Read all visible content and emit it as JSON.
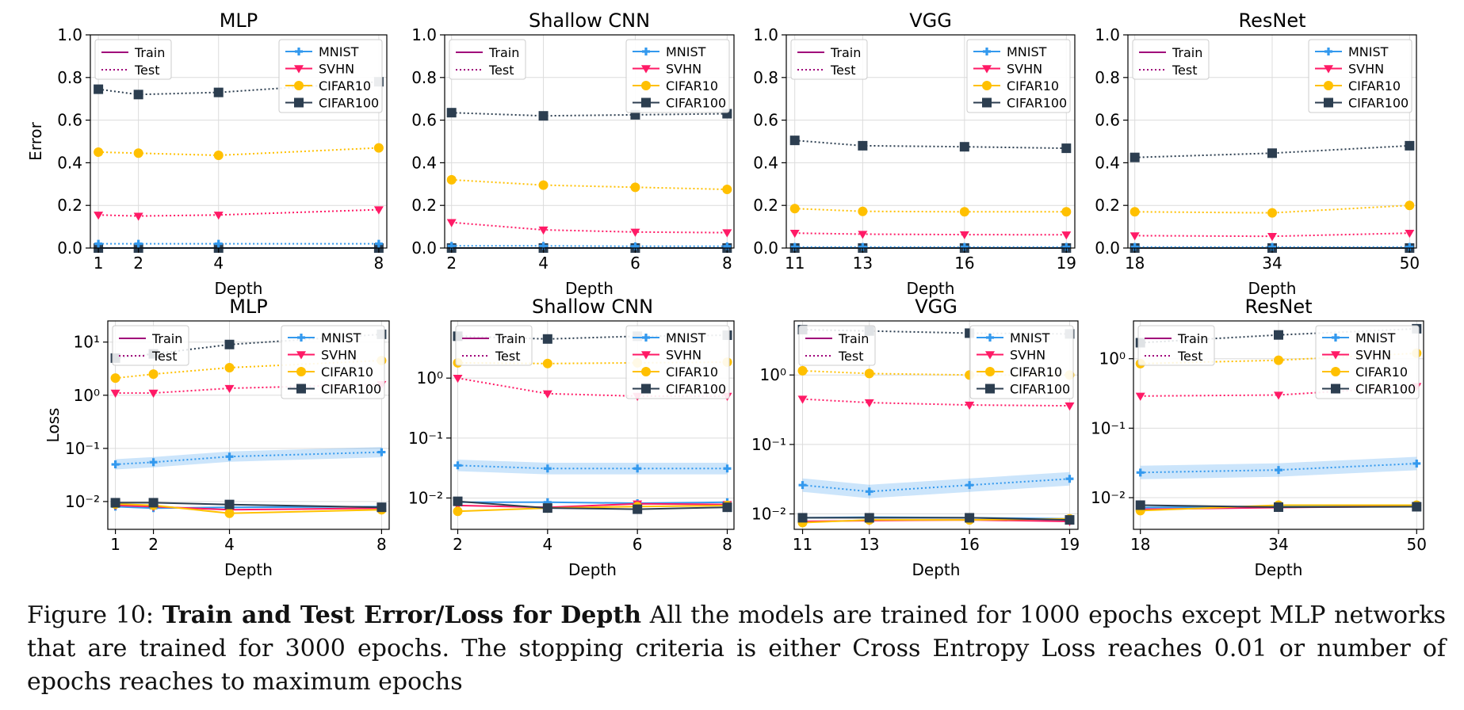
{
  "series_styles": {
    "MNIST": {
      "color": "#3399ee",
      "marker": "plus"
    },
    "SVHN": {
      "color": "#ff1a66",
      "marker": "tri-down"
    },
    "CIFAR10": {
      "color": "#ffc000",
      "marker": "circle"
    },
    "CIFAR100": {
      "color": "#2c3e50",
      "marker": "square"
    },
    "train_line_color": "#a0007a",
    "test_line_color": "#a0007a"
  },
  "legend": {
    "style": [
      "Train",
      "Test"
    ],
    "datasets": [
      "MNIST",
      "SVHN",
      "CIFAR10",
      "CIFAR100"
    ]
  },
  "caption": {
    "label": "Figure 10:",
    "bold": "Train and Test Error/Loss for Depth",
    "text": "All the models are trained for 1000 epochs except MLP networks that are trained for 3000 epochs. The stopping criteria is either Cross Entropy Loss reaches 0.01 or number of epochs reaches to maximum epochs"
  },
  "chart_data": [
    {
      "type": "line",
      "title": "MLP",
      "xlabel": "Depth",
      "ylabel": "Error",
      "x": [
        1,
        2,
        4,
        8
      ],
      "xlim": [
        0.8,
        8.2
      ],
      "ylim": [
        0,
        1.0
      ],
      "yscale": "linear",
      "yticks": [
        "0.0",
        "0.2",
        "0.4",
        "0.6",
        "0.8",
        "1.0"
      ],
      "ytick_values": [
        0,
        0.2,
        0.4,
        0.6,
        0.8,
        1.0
      ],
      "grid": true,
      "legend_placement": "top-left and top-right",
      "series": [
        {
          "name": "MNIST",
          "split": "Train",
          "values": [
            0.0,
            0.0,
            0.0,
            0.0
          ]
        },
        {
          "name": "SVHN",
          "split": "Train",
          "values": [
            0.0,
            0.0,
            0.0,
            0.0
          ]
        },
        {
          "name": "CIFAR10",
          "split": "Train",
          "values": [
            0.0,
            0.0,
            0.0,
            0.0
          ]
        },
        {
          "name": "CIFAR100",
          "split": "Train",
          "values": [
            0.0,
            0.0,
            0.0,
            0.0
          ]
        },
        {
          "name": "MNIST",
          "split": "Test",
          "values": [
            0.02,
            0.02,
            0.02,
            0.02
          ]
        },
        {
          "name": "SVHN",
          "split": "Test",
          "values": [
            0.155,
            0.15,
            0.155,
            0.18
          ]
        },
        {
          "name": "CIFAR10",
          "split": "Test",
          "values": [
            0.45,
            0.445,
            0.435,
            0.47
          ]
        },
        {
          "name": "CIFAR100",
          "split": "Test",
          "values": [
            0.745,
            0.72,
            0.73,
            0.78
          ]
        }
      ]
    },
    {
      "type": "line",
      "title": "Shallow CNN",
      "xlabel": "Depth",
      "ylabel": "",
      "x": [
        2,
        4,
        6,
        8
      ],
      "xlim": [
        1.85,
        8.15
      ],
      "ylim": [
        0,
        1.0
      ],
      "yscale": "linear",
      "yticks": [
        "0.0",
        "0.2",
        "0.4",
        "0.6",
        "0.8",
        "1.0"
      ],
      "ytick_values": [
        0,
        0.2,
        0.4,
        0.6,
        0.8,
        1.0
      ],
      "grid": true,
      "legend_placement": "top-left and top-right",
      "series": [
        {
          "name": "MNIST",
          "split": "Train",
          "values": [
            0.0,
            0.0,
            0.0,
            0.0
          ]
        },
        {
          "name": "SVHN",
          "split": "Train",
          "values": [
            0.0,
            0.0,
            0.0,
            0.0
          ]
        },
        {
          "name": "CIFAR10",
          "split": "Train",
          "values": [
            0.0,
            0.0,
            0.0,
            0.0
          ]
        },
        {
          "name": "CIFAR100",
          "split": "Train",
          "values": [
            0.0,
            0.0,
            0.0,
            0.0
          ]
        },
        {
          "name": "MNIST",
          "split": "Test",
          "values": [
            0.01,
            0.01,
            0.008,
            0.008
          ]
        },
        {
          "name": "SVHN",
          "split": "Test",
          "values": [
            0.12,
            0.085,
            0.075,
            0.072
          ]
        },
        {
          "name": "CIFAR10",
          "split": "Test",
          "values": [
            0.32,
            0.295,
            0.285,
            0.275
          ]
        },
        {
          "name": "CIFAR100",
          "split": "Test",
          "values": [
            0.635,
            0.62,
            0.625,
            0.63
          ]
        }
      ]
    },
    {
      "type": "line",
      "title": "VGG",
      "xlabel": "Depth",
      "ylabel": "",
      "x": [
        11,
        13,
        16,
        19
      ],
      "xlim": [
        10.75,
        19.25
      ],
      "ylim": [
        0,
        1.0
      ],
      "yscale": "linear",
      "yticks": [
        "0.0",
        "0.2",
        "0.4",
        "0.6",
        "0.8",
        "1.0"
      ],
      "ytick_values": [
        0,
        0.2,
        0.4,
        0.6,
        0.8,
        1.0
      ],
      "grid": true,
      "legend_placement": "top-left and top-right",
      "series": [
        {
          "name": "MNIST",
          "split": "Train",
          "values": [
            0.0,
            0.0,
            0.0,
            0.0
          ]
        },
        {
          "name": "SVHN",
          "split": "Train",
          "values": [
            0.0,
            0.0,
            0.0,
            0.0
          ]
        },
        {
          "name": "CIFAR10",
          "split": "Train",
          "values": [
            0.0,
            0.0,
            0.0,
            0.0
          ]
        },
        {
          "name": "CIFAR100",
          "split": "Train",
          "values": [
            0.0,
            0.0,
            0.0,
            0.0
          ]
        },
        {
          "name": "MNIST",
          "split": "Test",
          "values": [
            0.005,
            0.005,
            0.005,
            0.005
          ]
        },
        {
          "name": "SVHN",
          "split": "Test",
          "values": [
            0.07,
            0.065,
            0.063,
            0.062
          ]
        },
        {
          "name": "CIFAR10",
          "split": "Test",
          "values": [
            0.185,
            0.172,
            0.17,
            0.17
          ]
        },
        {
          "name": "CIFAR100",
          "split": "Test",
          "values": [
            0.505,
            0.48,
            0.475,
            0.468
          ]
        }
      ]
    },
    {
      "type": "line",
      "title": "ResNet",
      "xlabel": "Depth",
      "ylabel": "",
      "x": [
        18,
        34,
        50
      ],
      "xlim": [
        17.2,
        50.8
      ],
      "ylim": [
        0,
        1.0
      ],
      "yscale": "linear",
      "yticks": [
        "0.0",
        "0.2",
        "0.4",
        "0.6",
        "0.8",
        "1.0"
      ],
      "ytick_values": [
        0,
        0.2,
        0.4,
        0.6,
        0.8,
        1.0
      ],
      "grid": true,
      "legend_placement": "top-left and top-right",
      "series": [
        {
          "name": "MNIST",
          "split": "Train",
          "values": [
            0.0,
            0.0,
            0.0
          ]
        },
        {
          "name": "SVHN",
          "split": "Train",
          "values": [
            0.0,
            0.0,
            0.0
          ]
        },
        {
          "name": "CIFAR10",
          "split": "Train",
          "values": [
            0.0,
            0.0,
            0.0
          ]
        },
        {
          "name": "CIFAR100",
          "split": "Train",
          "values": [
            0.0,
            0.0,
            0.0
          ]
        },
        {
          "name": "MNIST",
          "split": "Test",
          "values": [
            0.005,
            0.005,
            0.005
          ]
        },
        {
          "name": "SVHN",
          "split": "Test",
          "values": [
            0.058,
            0.055,
            0.07
          ]
        },
        {
          "name": "CIFAR10",
          "split": "Test",
          "values": [
            0.17,
            0.165,
            0.2
          ]
        },
        {
          "name": "CIFAR100",
          "split": "Test",
          "values": [
            0.425,
            0.445,
            0.48
          ]
        }
      ]
    },
    {
      "type": "line",
      "title": "MLP",
      "xlabel": "Depth",
      "ylabel": "Loss",
      "x": [
        1,
        2,
        4,
        8
      ],
      "xlim": [
        0.8,
        8.2
      ],
      "ylim": [
        0.003,
        25
      ],
      "yscale": "log",
      "yticks": [
        "10⁻²",
        "10⁻¹",
        "10⁰",
        "10¹"
      ],
      "ytick_values": [
        0.01,
        0.1,
        1,
        10
      ],
      "grid": true,
      "legend_placement": "top-left and top-right",
      "series": [
        {
          "name": "MNIST",
          "split": "Train",
          "values": [
            0.008,
            0.0075,
            0.0078,
            0.008
          ]
        },
        {
          "name": "SVHN",
          "split": "Train",
          "values": [
            0.0085,
            0.008,
            0.007,
            0.0075
          ]
        },
        {
          "name": "CIFAR10",
          "split": "Train",
          "values": [
            0.009,
            0.0085,
            0.006,
            0.007
          ]
        },
        {
          "name": "CIFAR100",
          "split": "Train",
          "values": [
            0.0095,
            0.0095,
            0.0088,
            0.0078
          ]
        },
        {
          "name": "MNIST",
          "split": "Test",
          "values": [
            0.05,
            0.055,
            0.07,
            0.085
          ]
        },
        {
          "name": "SVHN",
          "split": "Test",
          "values": [
            1.1,
            1.1,
            1.35,
            1.6
          ]
        },
        {
          "name": "CIFAR10",
          "split": "Test",
          "values": [
            2.1,
            2.5,
            3.3,
            4.5
          ]
        },
        {
          "name": "CIFAR100",
          "split": "Test",
          "values": [
            5.0,
            6.0,
            9.0,
            14.0
          ]
        }
      ]
    },
    {
      "type": "line",
      "title": "Shallow CNN",
      "xlabel": "Depth",
      "ylabel": "",
      "x": [
        2,
        4,
        6,
        8
      ],
      "xlim": [
        1.85,
        8.15
      ],
      "ylim": [
        0.003,
        9
      ],
      "yscale": "log",
      "yticks": [
        "10⁻²",
        "10⁻¹",
        "10⁰"
      ],
      "ytick_values": [
        0.01,
        0.1,
        1
      ],
      "grid": true,
      "legend_placement": "top-left and top-right",
      "series": [
        {
          "name": "MNIST",
          "split": "Train",
          "values": [
            0.0085,
            0.0085,
            0.0082,
            0.0085
          ]
        },
        {
          "name": "SVHN",
          "split": "Train",
          "values": [
            0.0075,
            0.007,
            0.008,
            0.0078
          ]
        },
        {
          "name": "CIFAR10",
          "split": "Train",
          "values": [
            0.006,
            0.0068,
            0.0072,
            0.0075
          ]
        },
        {
          "name": "CIFAR100",
          "split": "Train",
          "values": [
            0.0088,
            0.0068,
            0.0065,
            0.007
          ]
        },
        {
          "name": "MNIST",
          "split": "Test",
          "values": [
            0.035,
            0.031,
            0.031,
            0.031
          ]
        },
        {
          "name": "SVHN",
          "split": "Test",
          "values": [
            1.0,
            0.55,
            0.5,
            0.5
          ]
        },
        {
          "name": "CIFAR10",
          "split": "Test",
          "values": [
            1.8,
            1.75,
            1.8,
            1.85
          ]
        },
        {
          "name": "CIFAR100",
          "split": "Test",
          "values": [
            5.0,
            4.5,
            5.0,
            5.2
          ]
        }
      ]
    },
    {
      "type": "line",
      "title": "VGG",
      "xlabel": "Depth",
      "ylabel": "",
      "x": [
        11,
        13,
        16,
        19
      ],
      "xlim": [
        10.75,
        19.25
      ],
      "ylim": [
        0.006,
        6
      ],
      "yscale": "log",
      "yticks": [
        "10⁻²",
        "10⁻¹",
        "10⁰"
      ],
      "ytick_values": [
        0.01,
        0.1,
        1
      ],
      "grid": true,
      "legend_placement": "top-left and top-right",
      "series": [
        {
          "name": "MNIST",
          "split": "Train",
          "values": [
            0.0088,
            0.009,
            0.0088,
            0.0085
          ]
        },
        {
          "name": "SVHN",
          "split": "Train",
          "values": [
            0.0078,
            0.008,
            0.0082,
            0.0078
          ]
        },
        {
          "name": "CIFAR10",
          "split": "Train",
          "values": [
            0.0075,
            0.0082,
            0.0082,
            0.0085
          ]
        },
        {
          "name": "CIFAR100",
          "split": "Train",
          "values": [
            0.0088,
            0.0088,
            0.0088,
            0.0082
          ]
        },
        {
          "name": "MNIST",
          "split": "Test",
          "values": [
            0.026,
            0.021,
            0.026,
            0.032
          ]
        },
        {
          "name": "SVHN",
          "split": "Test",
          "values": [
            0.45,
            0.4,
            0.37,
            0.36
          ]
        },
        {
          "name": "CIFAR10",
          "split": "Test",
          "values": [
            1.15,
            1.05,
            1.0,
            1.0
          ]
        },
        {
          "name": "CIFAR100",
          "split": "Test",
          "values": [
            4.5,
            4.3,
            4.0,
            3.9
          ]
        }
      ]
    },
    {
      "type": "line",
      "title": "ResNet",
      "xlabel": "Depth",
      "ylabel": "",
      "x": [
        18,
        34,
        50
      ],
      "xlim": [
        17.2,
        50.8
      ],
      "ylim": [
        0.0035,
        3.5
      ],
      "yscale": "log",
      "yticks": [
        "10⁻²",
        "10⁻¹",
        "10⁰"
      ],
      "ytick_values": [
        0.01,
        0.1,
        1
      ],
      "grid": true,
      "legend_placement": "top-left and top-right",
      "series": [
        {
          "name": "MNIST",
          "split": "Train",
          "values": [
            0.0072,
            0.0075,
            0.0078
          ]
        },
        {
          "name": "SVHN",
          "split": "Train",
          "values": [
            0.0068,
            0.0072,
            0.0075
          ]
        },
        {
          "name": "CIFAR10",
          "split": "Train",
          "values": [
            0.0065,
            0.0078,
            0.0078
          ]
        },
        {
          "name": "CIFAR100",
          "split": "Train",
          "values": [
            0.0078,
            0.0073,
            0.0074
          ]
        },
        {
          "name": "MNIST",
          "split": "Test",
          "values": [
            0.023,
            0.025,
            0.031
          ]
        },
        {
          "name": "SVHN",
          "split": "Test",
          "values": [
            0.29,
            0.3,
            0.4
          ]
        },
        {
          "name": "CIFAR10",
          "split": "Test",
          "values": [
            0.85,
            0.95,
            1.2
          ]
        },
        {
          "name": "CIFAR100",
          "split": "Test",
          "values": [
            1.7,
            2.2,
            2.7
          ]
        }
      ]
    }
  ]
}
